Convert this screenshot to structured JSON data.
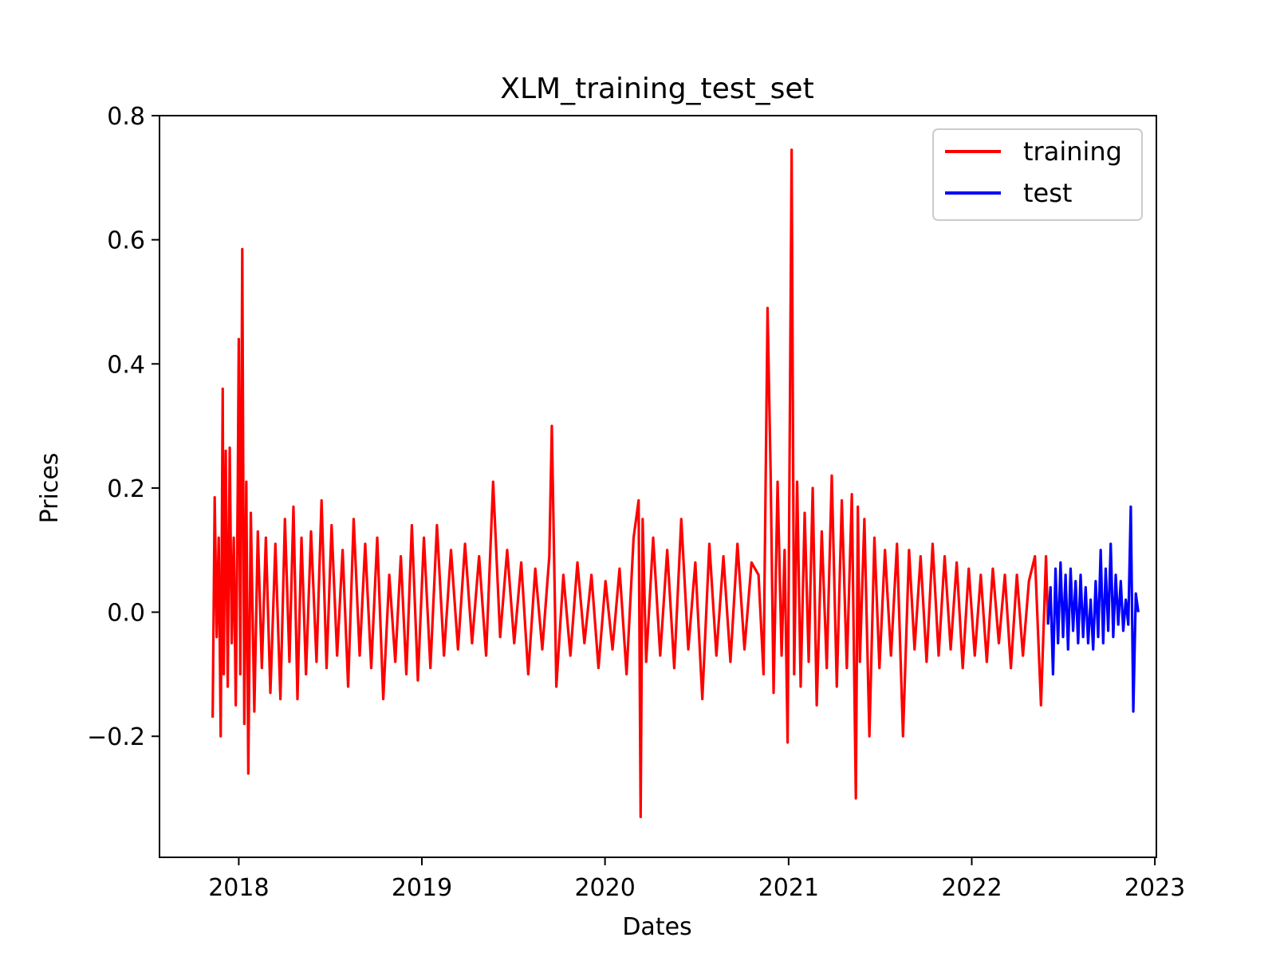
{
  "chart_data": {
    "type": "line",
    "title": "XLM_training_test_set",
    "xlabel": "Dates",
    "ylabel": "Prices",
    "x_axis": "date",
    "xlim": [
      "2017-07-27",
      "2023-01-04"
    ],
    "ylim": [
      -0.395,
      0.8
    ],
    "x_ticks": [
      "2018-01-01",
      "2019-01-01",
      "2020-01-01",
      "2021-01-01",
      "2022-01-01",
      "2023-01-01"
    ],
    "x_tick_labels": [
      "2018",
      "2019",
      "2020",
      "2021",
      "2022",
      "2023"
    ],
    "y_ticks": [
      -0.2,
      0.0,
      0.2,
      0.4,
      0.6,
      0.8
    ],
    "y_tick_labels": [
      "−0.2",
      "0.0",
      "0.2",
      "0.4",
      "0.6",
      "0.8"
    ],
    "grid": false,
    "legend": {
      "placement": "top-right",
      "entries": [
        "training",
        "test"
      ]
    },
    "series": [
      {
        "name": "training",
        "color": "#ff0000",
        "x": [
          "2017-11-10",
          "2017-11-14",
          "2017-11-18",
          "2017-11-22",
          "2017-11-26",
          "2017-11-30",
          "2017-12-02",
          "2017-12-06",
          "2017-12-10",
          "2017-12-14",
          "2017-12-18",
          "2017-12-22",
          "2017-12-26",
          "2017-12-30",
          "2018-01-01",
          "2018-01-04",
          "2018-01-08",
          "2018-01-12",
          "2018-01-16",
          "2018-01-20",
          "2018-01-25",
          "2018-02-01",
          "2018-02-08",
          "2018-02-16",
          "2018-02-24",
          "2018-03-05",
          "2018-03-15",
          "2018-03-25",
          "2018-04-03",
          "2018-04-12",
          "2018-04-20",
          "2018-04-28",
          "2018-05-06",
          "2018-05-15",
          "2018-05-25",
          "2018-06-05",
          "2018-06-15",
          "2018-06-25",
          "2018-07-05",
          "2018-07-16",
          "2018-07-27",
          "2018-08-07",
          "2018-08-18",
          "2018-08-30",
          "2018-09-10",
          "2018-09-22",
          "2018-10-04",
          "2018-10-16",
          "2018-10-28",
          "2018-11-09",
          "2018-11-20",
          "2018-12-01",
          "2018-12-12",
          "2018-12-24",
          "2019-01-05",
          "2019-01-18",
          "2019-01-31",
          "2019-02-14",
          "2019-02-28",
          "2019-03-14",
          "2019-03-28",
          "2019-04-11",
          "2019-04-25",
          "2019-05-09",
          "2019-05-23",
          "2019-06-06",
          "2019-06-20",
          "2019-07-04",
          "2019-07-18",
          "2019-08-01",
          "2019-08-15",
          "2019-08-29",
          "2019-09-12",
          "2019-09-17",
          "2019-09-26",
          "2019-10-10",
          "2019-10-24",
          "2019-11-07",
          "2019-11-21",
          "2019-12-05",
          "2019-12-19",
          "2020-01-02",
          "2020-01-16",
          "2020-01-30",
          "2020-02-13",
          "2020-02-27",
          "2020-03-08",
          "2020-03-12",
          "2020-03-16",
          "2020-03-23",
          "2020-04-06",
          "2020-04-20",
          "2020-05-04",
          "2020-05-18",
          "2020-06-01",
          "2020-06-15",
          "2020-06-29",
          "2020-07-13",
          "2020-07-27",
          "2020-08-10",
          "2020-08-24",
          "2020-09-07",
          "2020-09-21",
          "2020-10-05",
          "2020-10-19",
          "2020-11-02",
          "2020-11-12",
          "2020-11-20",
          "2020-11-26",
          "2020-12-02",
          "2020-12-10",
          "2020-12-18",
          "2020-12-24",
          "2020-12-30",
          "2021-01-03",
          "2021-01-07",
          "2021-01-12",
          "2021-01-18",
          "2021-01-25",
          "2021-02-02",
          "2021-02-10",
          "2021-02-18",
          "2021-02-26",
          "2021-03-08",
          "2021-03-18",
          "2021-03-28",
          "2021-04-07",
          "2021-04-17",
          "2021-04-27",
          "2021-05-07",
          "2021-05-15",
          "2021-05-19",
          "2021-05-23",
          "2021-06-01",
          "2021-06-11",
          "2021-06-21",
          "2021-07-01",
          "2021-07-12",
          "2021-07-24",
          "2021-08-05",
          "2021-08-17",
          "2021-08-29",
          "2021-09-09",
          "2021-09-21",
          "2021-10-03",
          "2021-10-15",
          "2021-10-27",
          "2021-11-08",
          "2021-11-20",
          "2021-12-02",
          "2021-12-14",
          "2021-12-26",
          "2022-01-07",
          "2022-01-19",
          "2022-01-31",
          "2022-02-12",
          "2022-02-24",
          "2022-03-08",
          "2022-03-20",
          "2022-04-01",
          "2022-04-13",
          "2022-04-25",
          "2022-05-07",
          "2022-05-19",
          "2022-05-29",
          "2022-06-02"
        ],
        "y": [
          -0.17,
          0.185,
          -0.04,
          0.12,
          -0.2,
          0.36,
          -0.1,
          0.26,
          -0.12,
          0.265,
          -0.05,
          0.12,
          -0.15,
          0.2,
          0.44,
          -0.1,
          0.585,
          -0.18,
          0.21,
          -0.26,
          0.16,
          -0.16,
          0.13,
          -0.09,
          0.12,
          -0.13,
          0.11,
          -0.14,
          0.15,
          -0.08,
          0.17,
          -0.14,
          0.12,
          -0.1,
          0.13,
          -0.08,
          0.18,
          -0.09,
          0.14,
          -0.07,
          0.1,
          -0.12,
          0.15,
          -0.07,
          0.11,
          -0.09,
          0.12,
          -0.14,
          0.06,
          -0.08,
          0.09,
          -0.1,
          0.14,
          -0.11,
          0.12,
          -0.09,
          0.14,
          -0.07,
          0.1,
          -0.06,
          0.11,
          -0.05,
          0.09,
          -0.07,
          0.21,
          -0.04,
          0.1,
          -0.05,
          0.08,
          -0.1,
          0.07,
          -0.06,
          0.09,
          0.3,
          -0.12,
          0.06,
          -0.07,
          0.08,
          -0.05,
          0.06,
          -0.09,
          0.05,
          -0.06,
          0.07,
          -0.1,
          0.12,
          0.18,
          -0.33,
          0.15,
          -0.08,
          0.12,
          -0.07,
          0.1,
          -0.09,
          0.15,
          -0.06,
          0.08,
          -0.14,
          0.11,
          -0.07,
          0.09,
          -0.08,
          0.11,
          -0.06,
          0.08,
          0.06,
          -0.1,
          0.49,
          0.23,
          -0.13,
          0.21,
          -0.07,
          0.1,
          -0.21,
          0.26,
          0.745,
          -0.1,
          0.21,
          -0.12,
          0.16,
          -0.08,
          0.2,
          -0.15,
          0.13,
          -0.09,
          0.22,
          -0.12,
          0.18,
          -0.09,
          0.19,
          -0.3,
          0.17,
          -0.08,
          0.15,
          -0.2,
          0.12,
          -0.09,
          0.1,
          -0.07,
          0.11,
          -0.2,
          0.1,
          -0.06,
          0.09,
          -0.08,
          0.11,
          -0.07,
          0.09,
          -0.06,
          0.08,
          -0.09,
          0.07,
          -0.07,
          0.06,
          -0.08,
          0.07,
          -0.05,
          0.06,
          -0.09,
          0.06,
          -0.07,
          0.05,
          0.09,
          -0.15,
          0.09,
          -0.02
        ]
      },
      {
        "name": "test",
        "color": "#0000ff",
        "x": [
          "2022-06-02",
          "2022-06-07",
          "2022-06-12",
          "2022-06-17",
          "2022-06-22",
          "2022-06-27",
          "2022-07-02",
          "2022-07-07",
          "2022-07-12",
          "2022-07-17",
          "2022-07-22",
          "2022-07-27",
          "2022-08-01",
          "2022-08-06",
          "2022-08-11",
          "2022-08-16",
          "2022-08-21",
          "2022-08-26",
          "2022-08-31",
          "2022-09-05",
          "2022-09-10",
          "2022-09-15",
          "2022-09-20",
          "2022-09-25",
          "2022-09-30",
          "2022-10-05",
          "2022-10-10",
          "2022-10-15",
          "2022-10-20",
          "2022-10-25",
          "2022-10-30",
          "2022-11-04",
          "2022-11-09",
          "2022-11-14",
          "2022-11-19",
          "2022-11-24",
          "2022-11-29"
        ],
        "y": [
          -0.02,
          0.04,
          -0.1,
          0.07,
          -0.05,
          0.08,
          -0.04,
          0.06,
          -0.06,
          0.07,
          -0.03,
          0.05,
          -0.05,
          0.06,
          -0.04,
          0.04,
          -0.05,
          0.02,
          -0.06,
          0.05,
          -0.04,
          0.1,
          -0.05,
          0.07,
          -0.03,
          0.11,
          -0.04,
          0.06,
          -0.02,
          0.05,
          -0.03,
          0.02,
          -0.02,
          0.17,
          -0.16,
          0.03,
          0.0
        ]
      }
    ]
  }
}
